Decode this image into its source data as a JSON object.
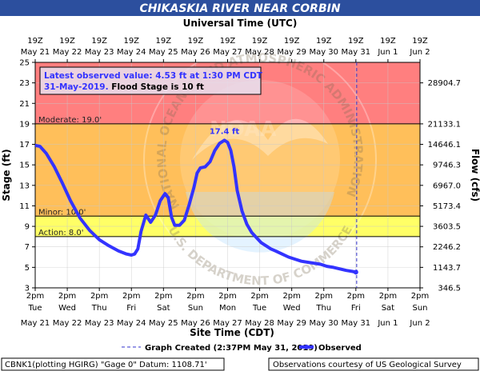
{
  "header": {
    "title": "CHIKASKIA RIVER NEAR CORBIN",
    "title_bg": "#2c4f9e"
  },
  "top_axis": {
    "title": "Universal Time (UTC)",
    "labels": [
      {
        "time": "19Z",
        "date": "May 21"
      },
      {
        "time": "19Z",
        "date": "May 22"
      },
      {
        "time": "19Z",
        "date": "May 23"
      },
      {
        "time": "19Z",
        "date": "May 24"
      },
      {
        "time": "19Z",
        "date": "May 25"
      },
      {
        "time": "19Z",
        "date": "May 26"
      },
      {
        "time": "19Z",
        "date": "May 27"
      },
      {
        "time": "19Z",
        "date": "May 28"
      },
      {
        "time": "19Z",
        "date": "May 29"
      },
      {
        "time": "19Z",
        "date": "May 30"
      },
      {
        "time": "19Z",
        "date": "May 31"
      },
      {
        "time": "19Z",
        "date": "Jun 1"
      },
      {
        "time": "19Z",
        "date": "Jun 2"
      }
    ]
  },
  "bottom_axis": {
    "title": "Site Time (CDT)",
    "labels": [
      {
        "time": "2pm",
        "day": "Tue",
        "date": "May 21"
      },
      {
        "time": "2pm",
        "day": "Wed",
        "date": "May 22"
      },
      {
        "time": "2pm",
        "day": "Thu",
        "date": "May 23"
      },
      {
        "time": "2pm",
        "day": "Fri",
        "date": "May 24"
      },
      {
        "time": "2pm",
        "day": "Sat",
        "date": "May 25"
      },
      {
        "time": "2pm",
        "day": "Sun",
        "date": "May 26"
      },
      {
        "time": "2pm",
        "day": "Mon",
        "date": "May 27"
      },
      {
        "time": "2pm",
        "day": "Tue",
        "date": "May 28"
      },
      {
        "time": "2pm",
        "day": "Wed",
        "date": "May 29"
      },
      {
        "time": "2pm",
        "day": "Thu",
        "date": "May 30"
      },
      {
        "time": "2pm",
        "day": "Fri",
        "date": "May 31"
      },
      {
        "time": "2pm",
        "day": "Sat",
        "date": "Jun 1"
      },
      {
        "time": "2pm",
        "day": "Sun",
        "date": "Jun 2"
      }
    ]
  },
  "left_axis": {
    "title": "Stage (ft)",
    "ticks": [
      "3",
      "5",
      "7",
      "9",
      "11",
      "13",
      "15",
      "17",
      "19",
      "21",
      "23",
      "25"
    ]
  },
  "right_axis": {
    "title": "Flow (cfs)",
    "ticks": [
      {
        "stage": 3,
        "label": "346.5"
      },
      {
        "stage": 5,
        "label": "1143.7"
      },
      {
        "stage": 7,
        "label": "2246.2"
      },
      {
        "stage": 9,
        "label": "3603.5"
      },
      {
        "stage": 11,
        "label": "5173.4"
      },
      {
        "stage": 13,
        "label": "6967.0"
      },
      {
        "stage": 15,
        "label": "9746.3"
      },
      {
        "stage": 17,
        "label": "14646.1"
      },
      {
        "stage": 19,
        "label": "21133.1"
      },
      {
        "stage": 23,
        "label": "28904.7"
      }
    ]
  },
  "stages": [
    {
      "name": "Moderate",
      "label": "Moderate: 19.0'",
      "value": 19.0
    },
    {
      "name": "Minor",
      "label": "Minor: 10.0'",
      "value": 10.0
    },
    {
      "name": "Action",
      "label": "Action: 8.0'",
      "value": 8.0
    }
  ],
  "bands_colors": {
    "major": "#ff7f7f",
    "moderate": "#ffbf5a",
    "minor": "#ffff66",
    "normal": "#ffffff"
  },
  "info_box": {
    "line1": "Latest observed value: 4.53 ft at 1:30 PM CDT",
    "line2_blue": "31-May-2019.",
    "line2_black": " Flood Stage is 10 ft"
  },
  "peak_label": "17.4 ft",
  "legend": {
    "graph_created": "Graph Created (2:37PM May 31, 2019)",
    "observed": "Observed"
  },
  "footer": {
    "left": "CBNK1(plotting HGIRG) \"Gage 0\" Datum: 1108.71'",
    "right": "Observations courtesy of US Geological Survey"
  },
  "watermark": {
    "ring_text": "NATIONAL OCEANIC AND ATMOSPHERIC ADMINISTRATION",
    "bottom_text": "U.S. DEPARTMENT OF COMMERCE",
    "center_text": "NOAA"
  },
  "chart_data": {
    "type": "line",
    "title": "CHIKASKIA RIVER NEAR CORBIN",
    "xlabel": "Site Time (CDT)",
    "ylabel": "Stage (ft)",
    "ylim": [
      3,
      25
    ],
    "xlim": [
      "May 21 2pm",
      "Jun 2 2pm"
    ],
    "line_color": "#3333ff",
    "current_time": "May 31 2:37pm",
    "series": [
      {
        "name": "Observed",
        "x": [
          0.0,
          0.15,
          0.35,
          0.6,
          0.85,
          1.1,
          1.4,
          1.7,
          2.0,
          2.3,
          2.6,
          2.85,
          3.0,
          3.1,
          3.2,
          3.3,
          3.45,
          3.6,
          3.75,
          3.9,
          4.05,
          4.15,
          4.25,
          4.35,
          4.5,
          4.65,
          4.8,
          4.95,
          5.05,
          5.15,
          5.3,
          5.45,
          5.6,
          5.75,
          5.9,
          6.0,
          6.1,
          6.2,
          6.3,
          6.45,
          6.6,
          6.75,
          6.9,
          7.05,
          7.2,
          7.35,
          7.5,
          7.7,
          7.9,
          8.1,
          8.3,
          8.5,
          8.7,
          8.9,
          9.1,
          9.3,
          9.5,
          9.7,
          9.9,
          10.0
        ],
        "y": [
          16.9,
          16.8,
          16.1,
          14.8,
          13.2,
          11.5,
          9.8,
          8.6,
          7.7,
          7.1,
          6.6,
          6.3,
          6.2,
          6.3,
          6.8,
          8.5,
          10.1,
          9.4,
          10.1,
          11.5,
          12.2,
          11.8,
          9.9,
          9.1,
          9.1,
          9.6,
          11.1,
          12.8,
          14.2,
          14.7,
          14.8,
          15.3,
          16.4,
          17.1,
          17.4,
          17.2,
          16.4,
          14.8,
          12.5,
          10.5,
          9.2,
          8.4,
          7.9,
          7.4,
          7.1,
          6.8,
          6.6,
          6.3,
          6.0,
          5.8,
          5.6,
          5.5,
          5.4,
          5.3,
          5.1,
          5.0,
          4.85,
          4.7,
          4.6,
          4.53
        ]
      }
    ]
  }
}
